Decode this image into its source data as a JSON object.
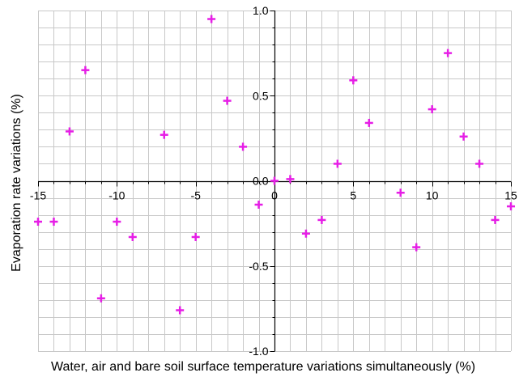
{
  "chart_data": {
    "type": "scatter",
    "title": "",
    "xlabel": "Water, air and bare soil surface temperature variations simultaneously (%)",
    "ylabel": "Evaporation rate variations (%)",
    "xlim": [
      -15,
      15
    ],
    "ylim": [
      -1.0,
      1.0
    ],
    "x_major_ticks": [
      -15,
      -10,
      -5,
      0,
      5,
      10,
      15
    ],
    "x_tick_labels": [
      "-15",
      "-10",
      "-5",
      "0",
      "5",
      "10",
      "15"
    ],
    "y_major_ticks": [
      -1.0,
      -0.5,
      0.0,
      0.5,
      1.0
    ],
    "y_tick_labels": [
      "-1.0",
      "-0.5",
      "0.0",
      "0.5",
      "1.0"
    ],
    "x_minor_step": 1,
    "y_minor_step": 0.1,
    "grid": true,
    "axes_cross_at_origin": true,
    "marker": "plus",
    "marker_color": "#e61ee6",
    "grid_color": "#c8c8c8",
    "series": [
      {
        "points": [
          {
            "x": -15,
            "y": -0.24
          },
          {
            "x": -14,
            "y": -0.24
          },
          {
            "x": -13,
            "y": 0.29
          },
          {
            "x": -12,
            "y": 0.65
          },
          {
            "x": -11,
            "y": -0.69
          },
          {
            "x": -10,
            "y": -0.24
          },
          {
            "x": -9,
            "y": -0.33
          },
          {
            "x": -7,
            "y": 0.27
          },
          {
            "x": -6,
            "y": -0.76
          },
          {
            "x": -5,
            "y": -0.33
          },
          {
            "x": -4,
            "y": 0.95
          },
          {
            "x": -3,
            "y": 0.47
          },
          {
            "x": -2,
            "y": 0.2
          },
          {
            "x": -1,
            "y": -0.14
          },
          {
            "x": 0,
            "y": 0.0
          },
          {
            "x": 1,
            "y": 0.01
          },
          {
            "x": 2,
            "y": -0.31
          },
          {
            "x": 3,
            "y": -0.23
          },
          {
            "x": 4,
            "y": 0.1
          },
          {
            "x": 5,
            "y": 0.59
          },
          {
            "x": 6,
            "y": 0.34
          },
          {
            "x": 8,
            "y": -0.07
          },
          {
            "x": 9,
            "y": -0.39
          },
          {
            "x": 10,
            "y": 0.42
          },
          {
            "x": 11,
            "y": 0.75
          },
          {
            "x": 12,
            "y": 0.26
          },
          {
            "x": 13,
            "y": 0.1
          },
          {
            "x": 14,
            "y": -0.23
          },
          {
            "x": 15,
            "y": -0.15
          }
        ]
      }
    ]
  }
}
